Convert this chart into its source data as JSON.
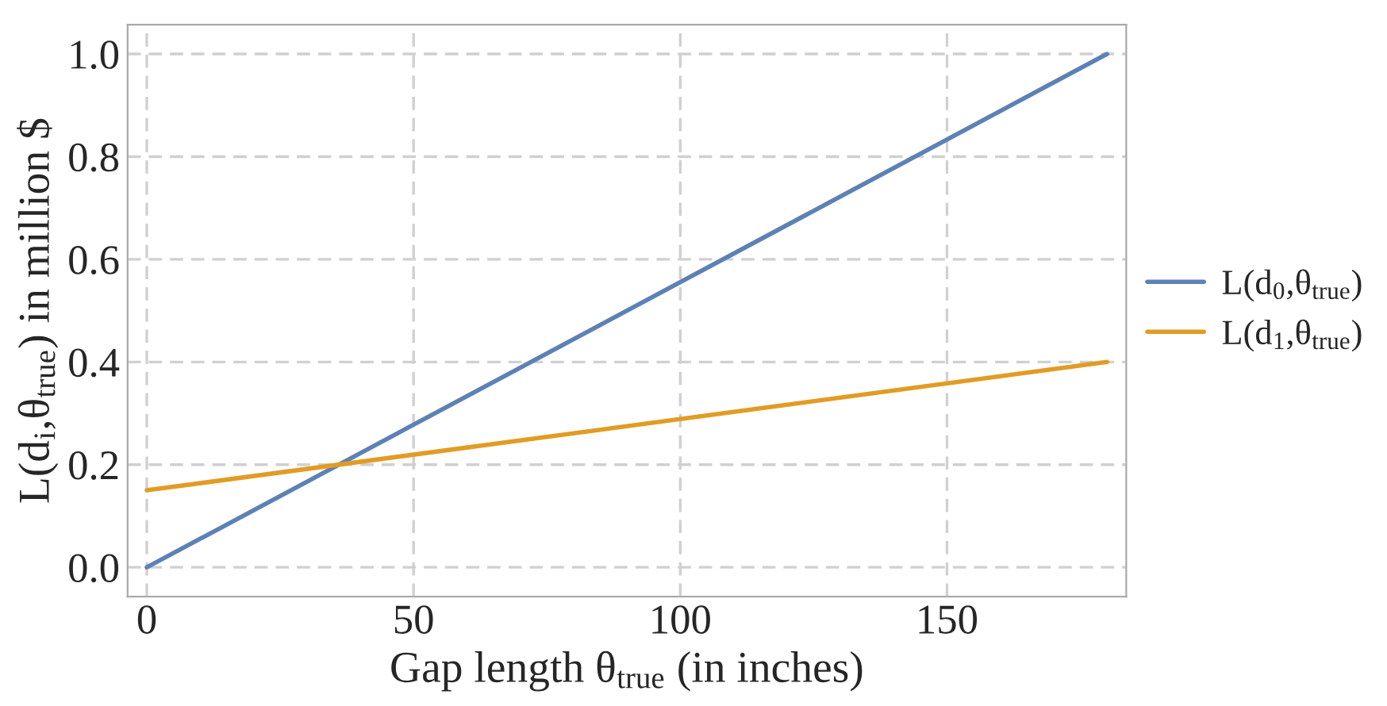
{
  "chart_data": {
    "type": "line",
    "xlabel": "Gap length θ$_{true}$ (in inches)",
    "ylabel": "L(d$_{i}$,θ$_{true}$) in million $",
    "x": [
      0,
      180
    ],
    "series": [
      {
        "name": "L(d$_{0}$,θ$_{true}$)",
        "color": "#5e81b5",
        "values": [
          0,
          1.0
        ]
      },
      {
        "name": "L(d$_{1}$,θ$_{true}$)",
        "color": "#e19c24",
        "values": [
          0.15,
          0.4
        ]
      }
    ],
    "xlim": [
      -3.6,
      183.6
    ],
    "xticks": [
      0,
      50,
      100,
      150
    ],
    "ylim": [
      -0.057,
      1.057
    ],
    "yticks": [
      {
        "value": 0,
        "label": "0.0"
      },
      {
        "value": 0.2,
        "label": "0.2"
      },
      {
        "value": 0.4,
        "label": "0.4"
      },
      {
        "value": 0.6,
        "label": "0.6"
      },
      {
        "value": 0.8,
        "label": "0.8"
      },
      {
        "value": 1.0,
        "label": "1.0"
      }
    ],
    "grid": true,
    "legend": "right",
    "line_style": "solid",
    "marker": "none"
  }
}
